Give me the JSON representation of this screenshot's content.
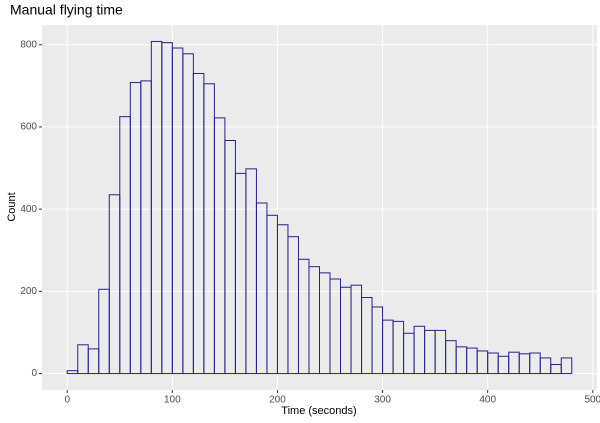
{
  "chart_data": {
    "type": "histogram",
    "title": "Manual flying time",
    "x_label": "Time (seconds)",
    "y_label": "Count",
    "bins": [
      0,
      10,
      20,
      30,
      40,
      50,
      60,
      70,
      80,
      90,
      100,
      110,
      120,
      130,
      140,
      150,
      160,
      170,
      180,
      190,
      200,
      210,
      220,
      230,
      240,
      250,
      260,
      270,
      280,
      290,
      300,
      310,
      320,
      330,
      340,
      350,
      360,
      370,
      380,
      390,
      400,
      410,
      420,
      430,
      440,
      450,
      460,
      470,
      480
    ],
    "counts": [
      7,
      70,
      60,
      205,
      435,
      625,
      708,
      712,
      808,
      805,
      792,
      778,
      730,
      705,
      622,
      567,
      487,
      498,
      415,
      385,
      362,
      333,
      278,
      260,
      245,
      230,
      210,
      215,
      185,
      162,
      130,
      127,
      98,
      115,
      105,
      105,
      80,
      65,
      62,
      55,
      50,
      42,
      52,
      48,
      50,
      38,
      22,
      38
    ],
    "color": "#23238e",
    "xlim": [
      -24,
      504
    ],
    "ylim": [
      -40,
      848
    ],
    "xticks": [
      0,
      100,
      200,
      300,
      400,
      500
    ],
    "yticks": [
      0,
      200,
      400,
      600,
      800
    ],
    "grid": true
  }
}
